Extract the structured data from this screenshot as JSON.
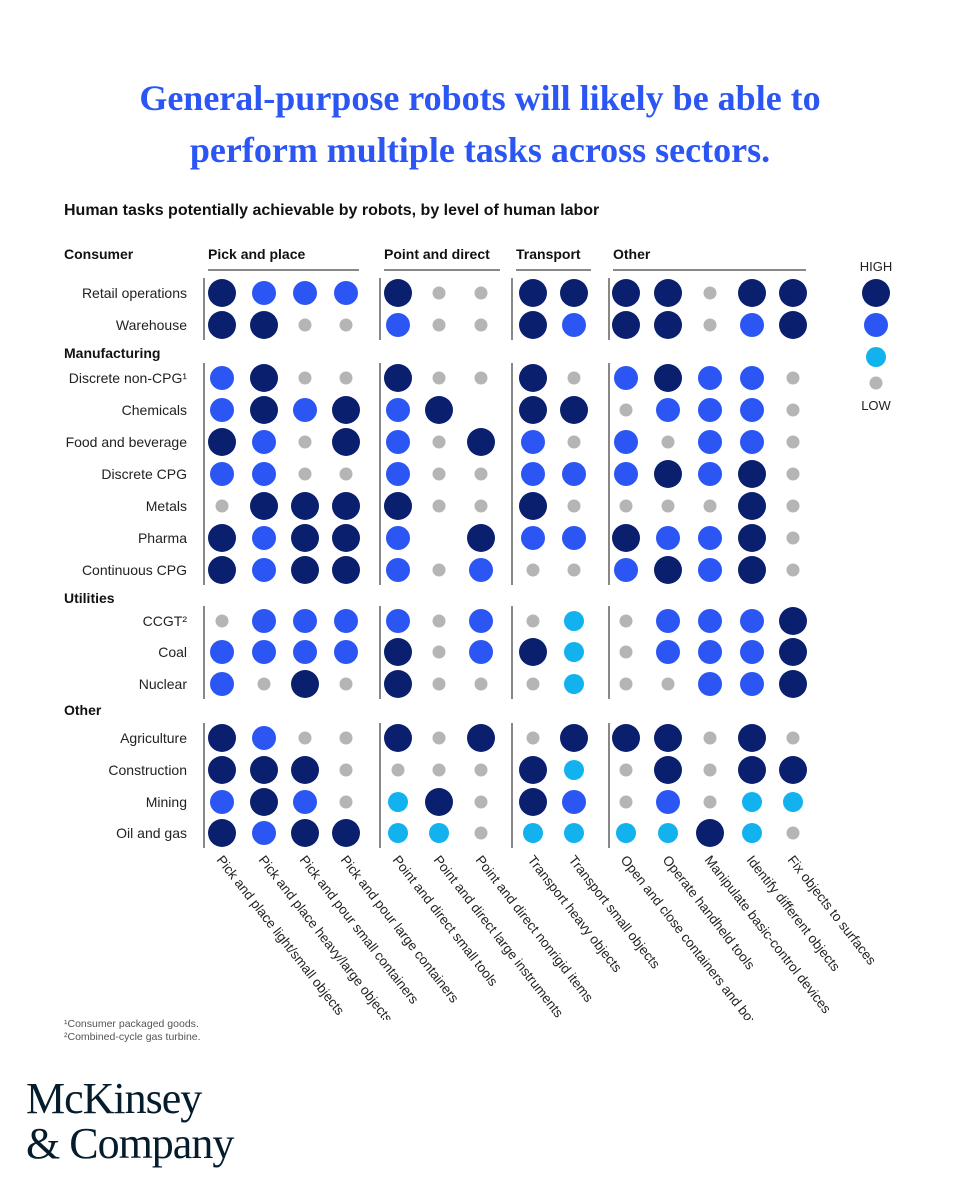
{
  "header": {
    "title_line1": "General-purpose robots will likely be able to",
    "title_line2": "perform multiple tasks across sectors.",
    "subtitle": "Human tasks potentially achievable by robots, by level of human labor"
  },
  "footnotes": [
    "¹Consumer packaged goods.",
    "²Combined-cycle gas turbine."
  ],
  "logo": {
    "line1": "McKinsey",
    "line2": "& Company"
  },
  "colors": {
    "high": "#0b1f6f",
    "medium_high": "#2b56f3",
    "medium_low": "#12b2ef",
    "low": "#b5b5b5",
    "accent": "#2b56f3"
  },
  "chart_data": {
    "type": "dot-matrix",
    "legend": {
      "high": "HIGH",
      "low": "LOW",
      "levels": [
        4,
        3,
        2,
        1
      ]
    },
    "task_groups": [
      {
        "name": "Pick and place",
        "span": [
          0,
          3
        ]
      },
      {
        "name": "Point and direct",
        "span": [
          4,
          6
        ]
      },
      {
        "name": "Transport",
        "span": [
          7,
          8
        ]
      },
      {
        "name": "Other",
        "span": [
          9,
          13
        ]
      }
    ],
    "tasks": [
      "Pick and place light/small objects",
      "Pick and place heavy/large objects",
      "Pick and pour small containers",
      "Pick and pour large containers",
      "Point and direct small tools",
      "Point and direct large instruments",
      "Point and direct nonrigid items",
      "Transport heavy objects",
      "Transport small objects",
      "Open and close containers and boxes",
      "Operate handheld tools",
      "Manipulate basic-control devices",
      "Identify different objects",
      "Fix objects to surfaces"
    ],
    "sector_groups": [
      {
        "name": "Consumer",
        "rows": [
          {
            "label": "Retail operations",
            "values": [
              4,
              3,
              3,
              3,
              4,
              1,
              1,
              4,
              4,
              4,
              4,
              1,
              4,
              4
            ]
          },
          {
            "label": "Warehouse",
            "values": [
              4,
              4,
              1,
              1,
              3,
              1,
              1,
              4,
              3,
              4,
              4,
              1,
              3,
              4
            ]
          }
        ]
      },
      {
        "name": "Manufacturing",
        "rows": [
          {
            "label": "Discrete non-CPG¹",
            "values": [
              3,
              4,
              1,
              1,
              4,
              1,
              1,
              4,
              1,
              3,
              4,
              3,
              3,
              1
            ]
          },
          {
            "label": "Chemicals",
            "values": [
              3,
              4,
              3,
              4,
              3,
              4,
              0,
              4,
              4,
              1,
              3,
              3,
              3,
              1
            ]
          },
          {
            "label": "Food and beverage",
            "values": [
              4,
              3,
              1,
              4,
              3,
              1,
              4,
              3,
              1,
              3,
              1,
              3,
              3,
              1
            ]
          },
          {
            "label": "Discrete CPG",
            "values": [
              3,
              3,
              1,
              1,
              3,
              1,
              1,
              3,
              3,
              3,
              4,
              3,
              4,
              1
            ]
          },
          {
            "label": "Metals",
            "values": [
              1,
              4,
              4,
              4,
              4,
              1,
              1,
              4,
              1,
              1,
              1,
              1,
              4,
              1
            ]
          },
          {
            "label": "Pharma",
            "values": [
              4,
              3,
              4,
              4,
              3,
              0,
              4,
              3,
              3,
              4,
              3,
              3,
              4,
              1
            ]
          },
          {
            "label": "Continuous CPG",
            "values": [
              4,
              3,
              4,
              4,
              3,
              1,
              3,
              1,
              1,
              3,
              4,
              3,
              4,
              1
            ]
          }
        ]
      },
      {
        "name": "Utilities",
        "rows": [
          {
            "label": "CCGT²",
            "values": [
              1,
              3,
              3,
              3,
              3,
              1,
              3,
              1,
              2,
              1,
              3,
              3,
              3,
              4
            ]
          },
          {
            "label": "Coal",
            "values": [
              3,
              3,
              3,
              3,
              4,
              1,
              3,
              4,
              2,
              1,
              3,
              3,
              3,
              4
            ]
          },
          {
            "label": "Nuclear",
            "values": [
              3,
              1,
              4,
              1,
              4,
              1,
              1,
              1,
              2,
              1,
              1,
              3,
              3,
              4
            ]
          }
        ]
      },
      {
        "name": "Other",
        "rows": [
          {
            "label": "Agriculture",
            "values": [
              4,
              3,
              1,
              1,
              4,
              1,
              4,
              1,
              4,
              4,
              4,
              1,
              4,
              1
            ]
          },
          {
            "label": "Construction",
            "values": [
              4,
              4,
              4,
              1,
              1,
              1,
              1,
              4,
              2,
              1,
              4,
              1,
              4,
              4
            ]
          },
          {
            "label": "Mining",
            "values": [
              3,
              4,
              3,
              1,
              2,
              4,
              1,
              4,
              3,
              1,
              3,
              1,
              2,
              2
            ]
          },
          {
            "label": "Oil and gas",
            "values": [
              4,
              3,
              4,
              4,
              2,
              2,
              1,
              2,
              2,
              2,
              2,
              4,
              2,
              1
            ]
          }
        ]
      }
    ]
  }
}
